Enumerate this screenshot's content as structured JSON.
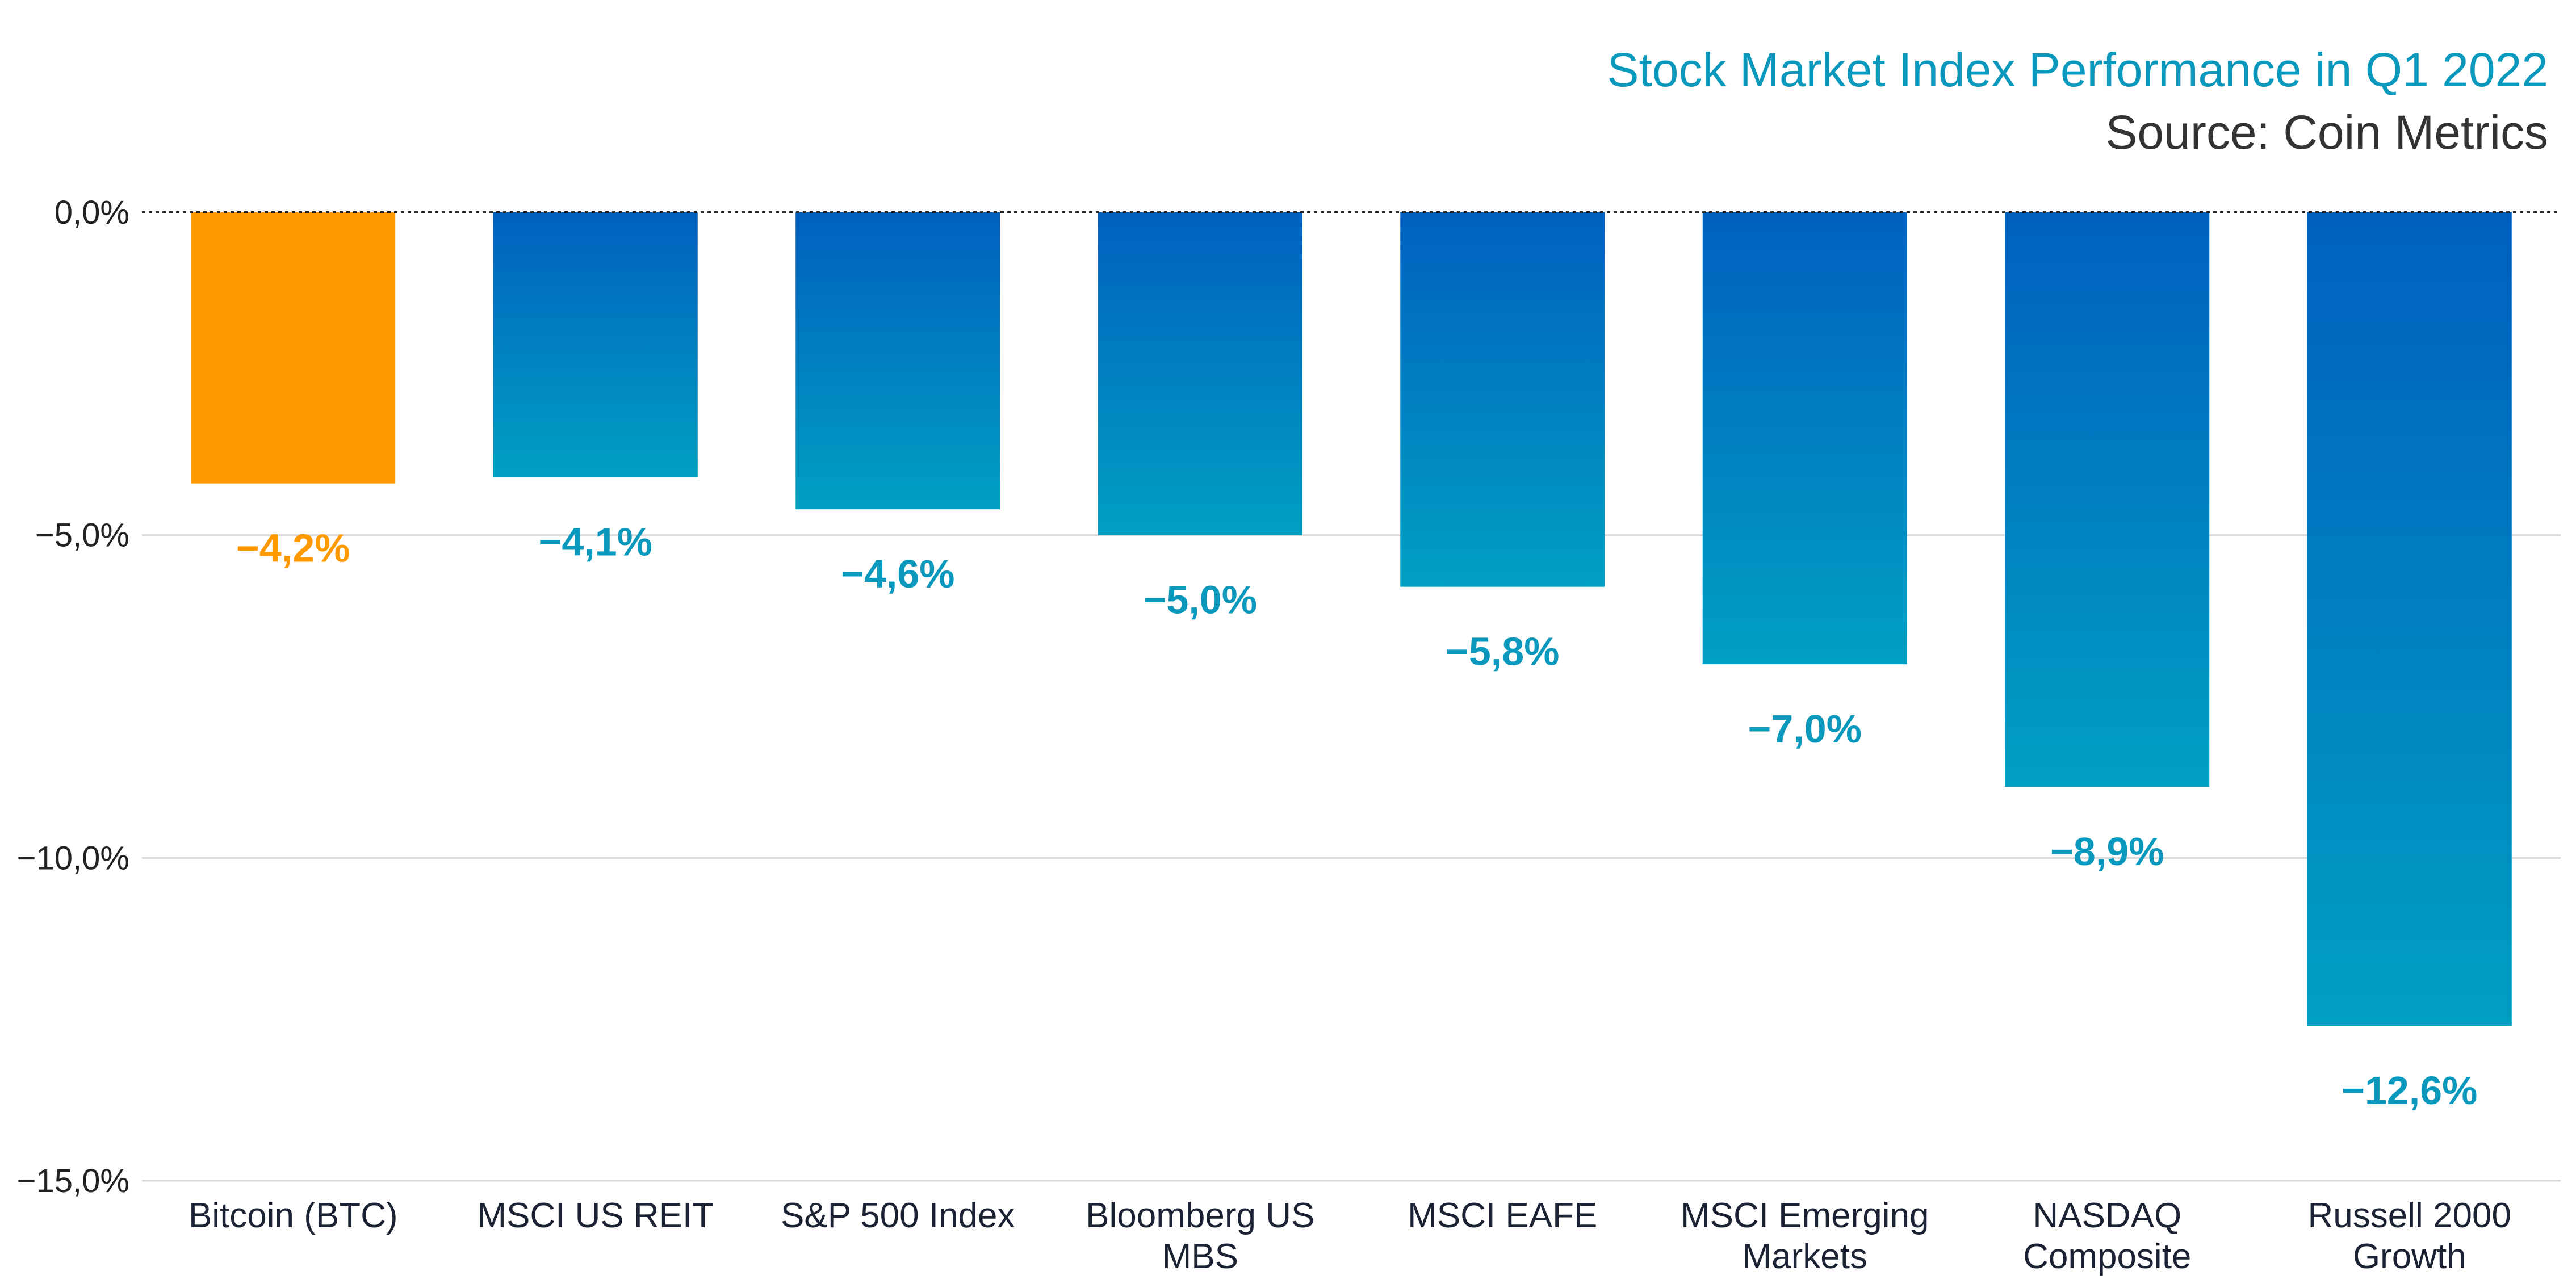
{
  "chart_data": {
    "type": "bar",
    "title": "Stock Market Index Performance in Q1 2022",
    "subtitle": "Source: Coin Metrics",
    "categories": [
      [
        "Bitcoin (BTC)"
      ],
      [
        "MSCI US REIT"
      ],
      [
        "S&P 500 Index"
      ],
      [
        "Bloomberg US",
        "MBS"
      ],
      [
        "MSCI EAFE"
      ],
      [
        "MSCI Emerging",
        "Markets"
      ],
      [
        "NASDAQ",
        "Composite"
      ],
      [
        "Russell 2000",
        "Growth"
      ]
    ],
    "values": [
      -4.2,
      -4.1,
      -4.6,
      -5.0,
      -5.8,
      -7.0,
      -8.9,
      -12.6
    ],
    "data_labels": [
      "−4,2%",
      "−4,1%",
      "−4,6%",
      "−5,0%",
      "−5,8%",
      "−7,0%",
      "−8,9%",
      "−12,6%"
    ],
    "ylim": [
      -15,
      0
    ],
    "yticks": [
      0,
      -5,
      -10,
      -15
    ],
    "ytick_labels": [
      "0,0%",
      "−5,0%",
      "−10,0%",
      "−15,0%"
    ],
    "grid": true,
    "zero_line": "dotted",
    "xlabel": "",
    "ylabel": ""
  },
  "colors": {
    "highlight": "#ff9900",
    "bar_top": "#0060c0",
    "bar_bottom": "#00a0c2",
    "label_blue": "#0a98bd",
    "title": "#0a98bd",
    "subtitle": "#333333",
    "grid": "#d8d8d8",
    "zero_line": "#222222"
  },
  "highlight_index": 0
}
